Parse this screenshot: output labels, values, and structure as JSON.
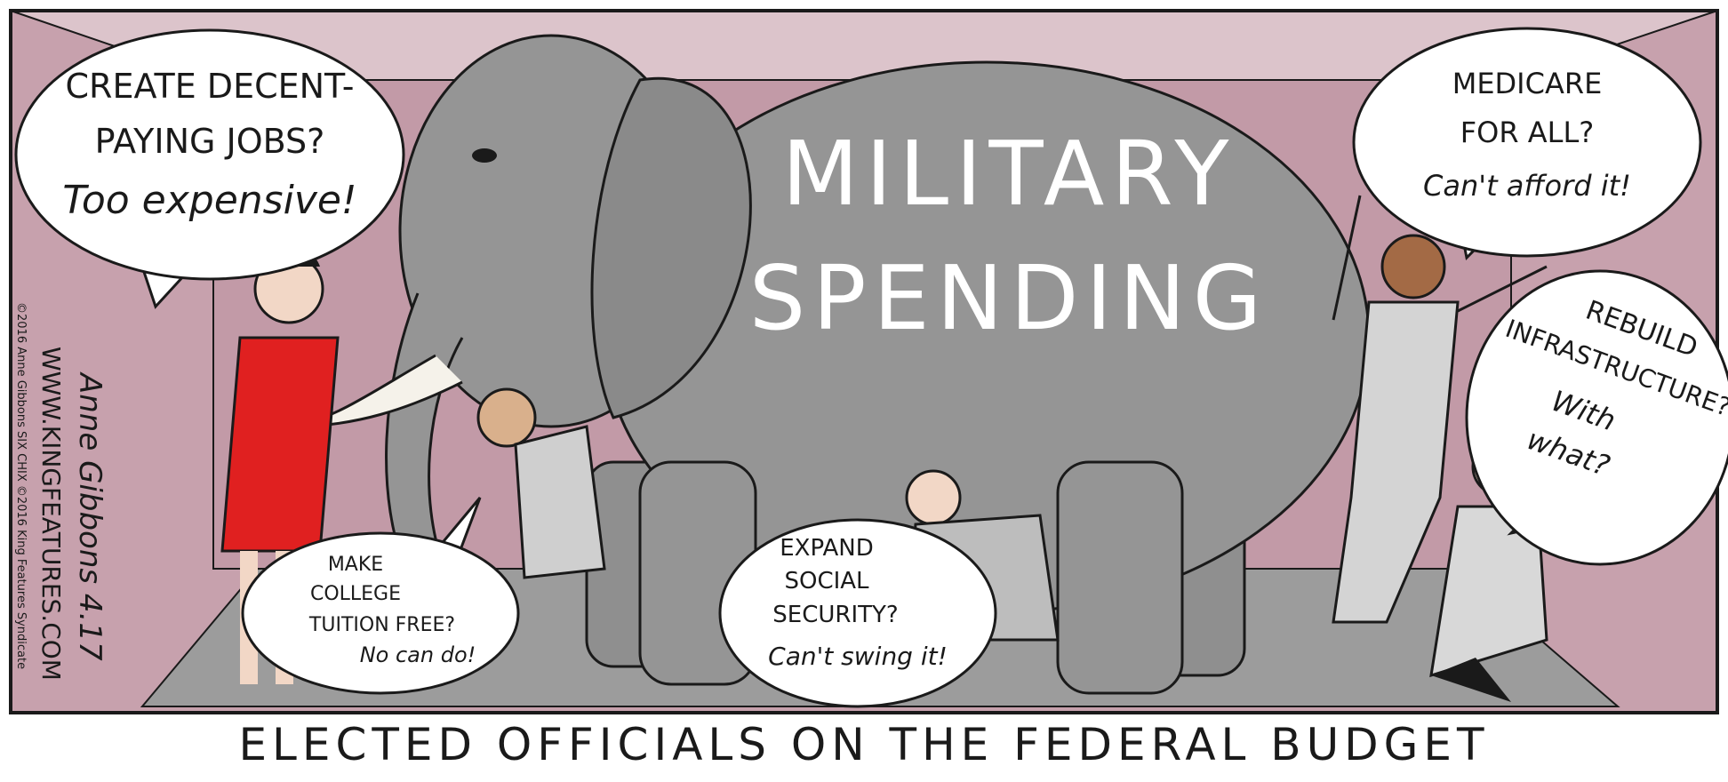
{
  "panel": {
    "elephant_label": [
      "MILITARY",
      "SPENDING"
    ],
    "bubbles": [
      {
        "lines": [
          "CREATE DECENT-",
          "PAYING JOBS?",
          "Too expensive!"
        ]
      },
      {
        "lines": [
          "MEDICARE",
          "FOR ALL?",
          "Can't afford it!"
        ]
      },
      {
        "lines": [
          "REBUILD",
          "INFRASTRUCTURE?",
          "With",
          "what?"
        ]
      },
      {
        "lines": [
          "MAKE",
          "COLLEGE",
          "TUITION FREE?",
          "No can do!"
        ]
      },
      {
        "lines": [
          "EXPAND",
          "SOCIAL",
          "SECURITY?",
          "Can't swing it!"
        ]
      }
    ],
    "signature": "Anne Gibbons 4.17",
    "website": "WWW.KINGFEATURES.COM",
    "copyright": "©2016 Anne Gibbons  SIX CHIX ©2016 King Features Syndicate"
  },
  "caption": "ELECTED OFFICIALS ON THE FEDERAL BUDGET"
}
